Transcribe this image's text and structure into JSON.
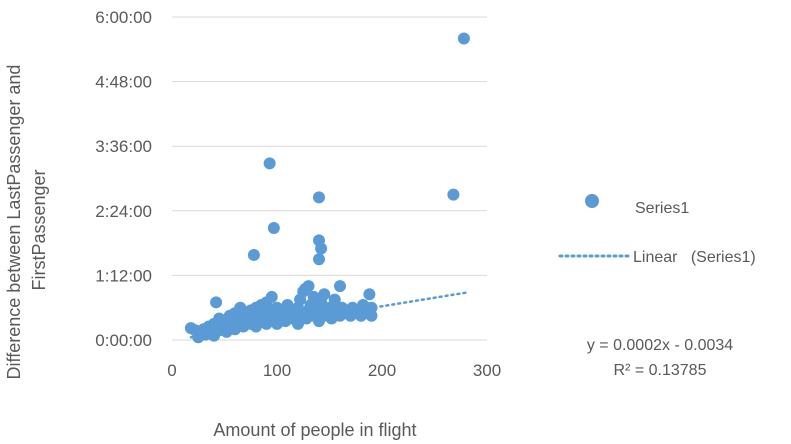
{
  "chart_data": {
    "type": "scatter",
    "xlabel": "Amount of people in flight",
    "ylabel_line1": "Difference  between LastPassenger and",
    "ylabel_line2": "FirstPassenger",
    "xlim": [
      0,
      300
    ],
    "ylim_hours": [
      0,
      6
    ],
    "x_ticks": [
      0,
      100,
      200,
      300
    ],
    "x_tick_labels": [
      "0",
      "100",
      "200",
      "300"
    ],
    "y_ticks_hours": [
      0,
      1.2,
      2.4,
      3.6,
      4.8,
      6.0
    ],
    "y_tick_labels": [
      "0:00:00",
      "1:12:00",
      "2:24:00",
      "3:36:00",
      "4:48:00",
      "6:00:00"
    ],
    "grid": {
      "x": false,
      "y": true
    },
    "legend_position": "right",
    "series": [
      {
        "name": "Series1",
        "color": "#5b9bd5",
        "y_unit": "hours",
        "points": [
          [
            18,
            0.22
          ],
          [
            22,
            0.18
          ],
          [
            25,
            0.05
          ],
          [
            28,
            0.12
          ],
          [
            30,
            0.2
          ],
          [
            32,
            0.1
          ],
          [
            35,
            0.25
          ],
          [
            38,
            0.15
          ],
          [
            40,
            0.3
          ],
          [
            40,
            0.08
          ],
          [
            42,
            0.7
          ],
          [
            42,
            0.22
          ],
          [
            45,
            0.4
          ],
          [
            45,
            0.18
          ],
          [
            48,
            0.35
          ],
          [
            50,
            0.28
          ],
          [
            52,
            0.15
          ],
          [
            55,
            0.45
          ],
          [
            55,
            0.25
          ],
          [
            58,
            0.38
          ],
          [
            60,
            0.5
          ],
          [
            60,
            0.2
          ],
          [
            62,
            0.32
          ],
          [
            65,
            0.42
          ],
          [
            65,
            0.6
          ],
          [
            68,
            0.25
          ],
          [
            70,
            0.35
          ],
          [
            70,
            0.5
          ],
          [
            72,
            0.45
          ],
          [
            75,
            0.3
          ],
          [
            75,
            0.55
          ],
          [
            78,
            0.4
          ],
          [
            80,
            0.6
          ],
          [
            80,
            0.25
          ],
          [
            82,
            0.5
          ],
          [
            85,
            0.35
          ],
          [
            85,
            0.65
          ],
          [
            88,
            0.45
          ],
          [
            90,
            0.7
          ],
          [
            90,
            0.3
          ],
          [
            92,
            0.55
          ],
          [
            95,
            0.4
          ],
          [
            95,
            0.8
          ],
          [
            98,
            0.5
          ],
          [
            100,
            0.6
          ],
          [
            100,
            0.3
          ],
          [
            102,
            0.45
          ],
          [
            105,
            0.55
          ],
          [
            108,
            0.35
          ],
          [
            110,
            0.5
          ],
          [
            110,
            0.65
          ],
          [
            112,
            0.4
          ],
          [
            115,
            0.55
          ],
          [
            118,
            0.45
          ],
          [
            120,
            0.6
          ],
          [
            120,
            0.3
          ],
          [
            122,
            0.75
          ],
          [
            125,
            0.5
          ],
          [
            125,
            0.9
          ],
          [
            128,
            0.4
          ],
          [
            130,
            1.0
          ],
          [
            130,
            0.55
          ],
          [
            132,
            0.65
          ],
          [
            135,
            0.45
          ],
          [
            135,
            0.8
          ],
          [
            138,
            0.55
          ],
          [
            140,
            0.6
          ],
          [
            140,
            0.35
          ],
          [
            142,
            0.7
          ],
          [
            145,
            0.5
          ],
          [
            145,
            0.85
          ],
          [
            148,
            0.45
          ],
          [
            150,
            0.6
          ],
          [
            152,
            0.4
          ],
          [
            155,
            0.75
          ],
          [
            155,
            0.55
          ],
          [
            158,
            0.5
          ],
          [
            160,
            1.0
          ],
          [
            160,
            0.45
          ],
          [
            162,
            0.6
          ],
          [
            165,
            0.5
          ],
          [
            168,
            0.55
          ],
          [
            170,
            0.45
          ],
          [
            172,
            0.6
          ],
          [
            175,
            0.5
          ],
          [
            178,
            0.55
          ],
          [
            180,
            0.45
          ],
          [
            182,
            0.65
          ],
          [
            185,
            0.5
          ],
          [
            188,
            0.85
          ],
          [
            190,
            0.6
          ],
          [
            190,
            0.45
          ],
          [
            78,
            1.58
          ],
          [
            93,
            3.28
          ],
          [
            97,
            2.08
          ],
          [
            140,
            1.85
          ],
          [
            142,
            1.7
          ],
          [
            140,
            1.5
          ],
          [
            140,
            2.65
          ],
          [
            127,
            0.95
          ],
          [
            268,
            2.7
          ],
          [
            278,
            5.6
          ]
        ]
      }
    ],
    "trendline": {
      "type": "linear",
      "name": "Linear",
      "legend_label": "Linear   (Series1)",
      "style": "dotted",
      "color": "#5b9bd5",
      "x_range": [
        18,
        280
      ],
      "y_start_hours": 0.05,
      "y_end_hours": 0.88,
      "equation": "y = 0.0002x - 0.0034",
      "r_squared": "R² = 0.13785"
    }
  }
}
